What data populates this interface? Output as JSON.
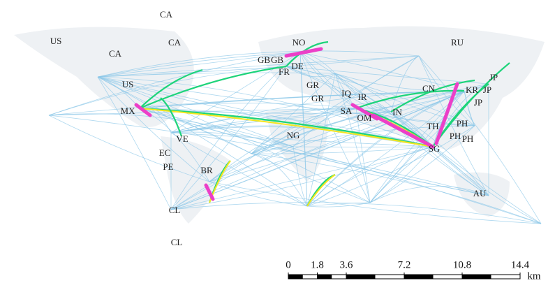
{
  "labels": [
    "CA",
    "US",
    "CA",
    "CA",
    "US",
    "MX",
    "VE",
    "EC",
    "PE",
    "BR",
    "CL",
    "CL",
    "NO",
    "GB",
    "GB",
    "DE",
    "FR",
    "GR",
    "GR",
    "IQ",
    "IR",
    "SA",
    "OM",
    "IN",
    "NG",
    "RU",
    "CN",
    "KR",
    "JP",
    "JP",
    "JP",
    "TH",
    "PH",
    "PH",
    "PH",
    "SG",
    "AU"
  ],
  "scale_bar": {
    "ticks": [
      0,
      1.8,
      3.6,
      7.2,
      10.8,
      14.4
    ],
    "unit": "km"
  }
}
